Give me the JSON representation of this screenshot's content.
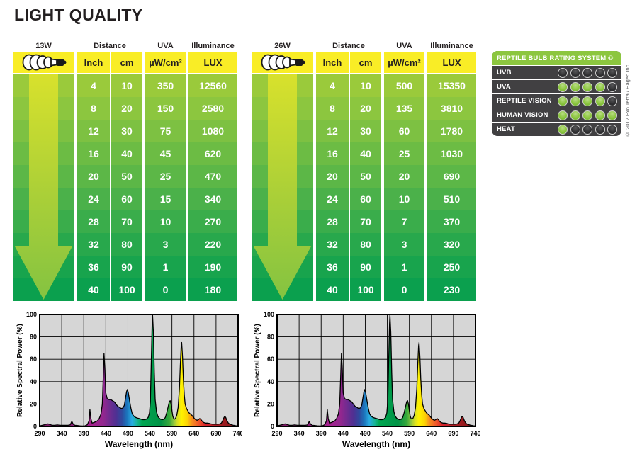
{
  "title": "LIGHT QUALITY",
  "tables": [
    {
      "wattage_label": "13W",
      "column_headers": {
        "distance": "Distance",
        "uva": "UVA",
        "illuminance": "Illuminance"
      },
      "unit_headers": {
        "inch": "Inch",
        "cm": "cm",
        "uva": "µW/cm²",
        "lux": "LUX"
      },
      "rows": [
        [
          4,
          10,
          350,
          12560
        ],
        [
          8,
          20,
          150,
          2580
        ],
        [
          12,
          30,
          75,
          1080
        ],
        [
          16,
          40,
          45,
          620
        ],
        [
          20,
          50,
          25,
          470
        ],
        [
          24,
          60,
          15,
          340
        ],
        [
          28,
          70,
          10,
          270
        ],
        [
          32,
          80,
          3,
          220
        ],
        [
          36,
          90,
          1,
          190
        ],
        [
          40,
          100,
          0,
          180
        ]
      ]
    },
    {
      "wattage_label": "26W",
      "column_headers": {
        "distance": "Distance",
        "uva": "UVA",
        "illuminance": "Illuminance"
      },
      "unit_headers": {
        "inch": "Inch",
        "cm": "cm",
        "uva": "µW/cm²",
        "lux": "LUX"
      },
      "rows": [
        [
          4,
          10,
          500,
          15350
        ],
        [
          8,
          20,
          135,
          3810
        ],
        [
          12,
          30,
          60,
          1780
        ],
        [
          16,
          40,
          25,
          1030
        ],
        [
          20,
          50,
          20,
          690
        ],
        [
          24,
          60,
          10,
          510
        ],
        [
          28,
          70,
          7,
          370
        ],
        [
          32,
          80,
          3,
          320
        ],
        [
          36,
          90,
          1,
          250
        ],
        [
          40,
          100,
          0,
          230
        ]
      ]
    }
  ],
  "styles": {
    "header_yellow": "#f9ed26",
    "row_colors": [
      "#9aca3b",
      "#8cc63f",
      "#7dc142",
      "#6cbc44",
      "#5cb747",
      "#4bb14a",
      "#3aad4b",
      "#28a84c",
      "#18a44d",
      "#0ba04e"
    ],
    "arrow_gradient": [
      "#d8e12c",
      "#a9cf38",
      "#84c341"
    ]
  },
  "rating": {
    "header": "REPTILE BULB RATING SYSTEM ©",
    "copyright": "© 2012 Exo Terra / Hagen Inc.",
    "max_dots": 5,
    "rows": [
      {
        "label": "UVB",
        "score": 0
      },
      {
        "label": "UVA",
        "score": 4
      },
      {
        "label": "REPTILE VISION",
        "score": 4
      },
      {
        "label": "HUMAN VISION",
        "score": 5
      },
      {
        "label": "HEAT",
        "score": 1
      }
    ],
    "colors": {
      "header_bg": "#8cc63f",
      "panel_bg": "#414042",
      "dot_on": "#8cc63f",
      "dot_off": "#2d2d2f"
    }
  },
  "chart_data": {
    "type": "area",
    "instances": [
      "13W spectrum",
      "26W spectrum"
    ],
    "title": "",
    "xlabel": "Wavelength (nm)",
    "ylabel": "Relative Spectral Power (%)",
    "xlim": [
      290,
      740
    ],
    "ylim": [
      0,
      100
    ],
    "x_ticks": [
      290,
      340,
      390,
      440,
      490,
      540,
      590,
      640,
      690,
      740
    ],
    "y_ticks": [
      0,
      20,
      40,
      60,
      80,
      100
    ],
    "grid": true,
    "plot_bg": "#d6d6d6",
    "peaks_note": "major emission peaks: 405nm=15%, 436nm=65%, 452nm=24%, 489nm=33%, 546nm=100%, 586nm=23%, 612nm=75%, 710nm=9%",
    "points": [
      [
        290,
        0.5
      ],
      [
        296,
        1
      ],
      [
        301,
        1.5
      ],
      [
        305,
        2
      ],
      [
        309,
        2.3
      ],
      [
        313,
        1.8
      ],
      [
        318,
        1
      ],
      [
        324,
        1
      ],
      [
        330,
        1.3
      ],
      [
        336,
        1
      ],
      [
        342,
        1
      ],
      [
        348,
        1
      ],
      [
        354,
        1
      ],
      [
        359,
        1.3
      ],
      [
        363,
        4.5
      ],
      [
        366,
        2
      ],
      [
        370,
        1
      ],
      [
        375,
        0.8
      ],
      [
        381,
        0.5
      ],
      [
        387,
        0.4
      ],
      [
        393,
        0.6
      ],
      [
        398,
        1.5
      ],
      [
        402,
        5
      ],
      [
        404,
        15
      ],
      [
        406,
        7
      ],
      [
        409,
        3
      ],
      [
        413,
        3.5
      ],
      [
        417,
        4.2
      ],
      [
        421,
        5
      ],
      [
        425,
        7
      ],
      [
        429,
        11
      ],
      [
        432,
        20
      ],
      [
        434,
        42
      ],
      [
        436,
        65
      ],
      [
        438,
        50
      ],
      [
        440,
        30
      ],
      [
        443,
        25
      ],
      [
        447,
        24
      ],
      [
        451,
        24
      ],
      [
        455,
        23
      ],
      [
        459,
        22
      ],
      [
        463,
        20
      ],
      [
        467,
        18
      ],
      [
        471,
        17
      ],
      [
        475,
        16
      ],
      [
        479,
        16.5
      ],
      [
        482,
        19
      ],
      [
        485,
        26
      ],
      [
        487,
        31
      ],
      [
        489,
        33
      ],
      [
        491,
        30
      ],
      [
        494,
        23
      ],
      [
        497,
        16
      ],
      [
        500,
        11
      ],
      [
        504,
        9
      ],
      [
        508,
        8
      ],
      [
        512,
        7.5
      ],
      [
        516,
        7
      ],
      [
        520,
        6.5
      ],
      [
        524,
        6
      ],
      [
        528,
        6
      ],
      [
        532,
        6.5
      ],
      [
        536,
        8
      ],
      [
        539,
        12
      ],
      [
        541,
        22
      ],
      [
        543,
        55
      ],
      [
        545,
        92
      ],
      [
        546,
        100
      ],
      [
        548,
        84
      ],
      [
        550,
        48
      ],
      [
        552,
        24
      ],
      [
        555,
        13
      ],
      [
        558,
        9
      ],
      [
        561,
        7.5
      ],
      [
        564,
        6.5
      ],
      [
        568,
        6
      ],
      [
        572,
        6.5
      ],
      [
        575,
        8
      ],
      [
        578,
        12
      ],
      [
        581,
        17
      ],
      [
        584,
        22
      ],
      [
        586,
        23
      ],
      [
        588,
        20
      ],
      [
        590,
        14
      ],
      [
        592,
        9
      ],
      [
        594,
        7
      ],
      [
        596,
        6.5
      ],
      [
        598,
        7
      ],
      [
        601,
        10
      ],
      [
        604,
        17
      ],
      [
        607,
        34
      ],
      [
        609,
        55
      ],
      [
        611,
        72
      ],
      [
        612,
        75
      ],
      [
        614,
        62
      ],
      [
        616,
        42
      ],
      [
        618,
        28
      ],
      [
        620,
        20
      ],
      [
        623,
        16
      ],
      [
        626,
        14
      ],
      [
        629,
        12
      ],
      [
        632,
        11
      ],
      [
        635,
        10
      ],
      [
        638,
        8.5
      ],
      [
        641,
        7
      ],
      [
        644,
        6
      ],
      [
        647,
        5.5
      ],
      [
        650,
        6
      ],
      [
        653,
        7
      ],
      [
        656,
        6
      ],
      [
        659,
        4.5
      ],
      [
        662,
        3.5
      ],
      [
        666,
        3
      ],
      [
        670,
        3
      ],
      [
        674,
        2.8
      ],
      [
        678,
        2.3
      ],
      [
        682,
        2
      ],
      [
        686,
        2
      ],
      [
        690,
        2
      ],
      [
        694,
        2
      ],
      [
        698,
        2.2
      ],
      [
        702,
        3
      ],
      [
        705,
        5
      ],
      [
        708,
        8
      ],
      [
        710,
        9
      ],
      [
        712,
        8
      ],
      [
        715,
        5
      ],
      [
        718,
        3
      ],
      [
        721,
        2
      ],
      [
        725,
        1.5
      ],
      [
        729,
        1
      ],
      [
        733,
        0.8
      ],
      [
        737,
        0.5
      ],
      [
        740,
        0.4
      ]
    ],
    "gradient_stops": [
      [
        0.0,
        "#7a1a62"
      ],
      [
        0.2,
        "#8b1d79"
      ],
      [
        0.26,
        "#a6218f"
      ],
      [
        0.32,
        "#93278f"
      ],
      [
        0.35,
        "#722b90"
      ],
      [
        0.385,
        "#4f3092"
      ],
      [
        0.415,
        "#2e4a9e"
      ],
      [
        0.44,
        "#1b75bc"
      ],
      [
        0.465,
        "#29abe2"
      ],
      [
        0.49,
        "#19b49b"
      ],
      [
        0.515,
        "#00a651"
      ],
      [
        0.61,
        "#009245"
      ],
      [
        0.655,
        "#39a93b"
      ],
      [
        0.675,
        "#8dc63f"
      ],
      [
        0.695,
        "#d9e021"
      ],
      [
        0.715,
        "#fff200"
      ],
      [
        0.745,
        "#fcd303"
      ],
      [
        0.765,
        "#f7941d"
      ],
      [
        0.8,
        "#f1592a"
      ],
      [
        0.835,
        "#d6212b"
      ],
      [
        0.9,
        "#a81d22"
      ],
      [
        1.0,
        "#7f1416"
      ]
    ]
  }
}
